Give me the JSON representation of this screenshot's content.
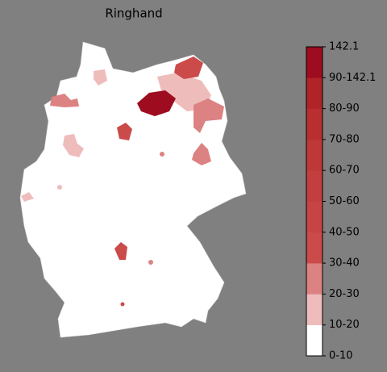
{
  "title": "Ringhand",
  "colorbar": {
    "labels": [
      "0-10",
      "10-20",
      "20-30",
      "30-40",
      "40-50",
      "50-60",
      "60-70",
      "70-80",
      "80-90",
      "90-142.1",
      "142.1"
    ],
    "colors": [
      "#ffffff",
      "#efbcbc",
      "#dc8282",
      "#cb4a4a",
      "#c74444",
      "#c33e3e",
      "#bf3838",
      "#b92f30",
      "#b02428",
      "#9e0c1f"
    ]
  }
}
